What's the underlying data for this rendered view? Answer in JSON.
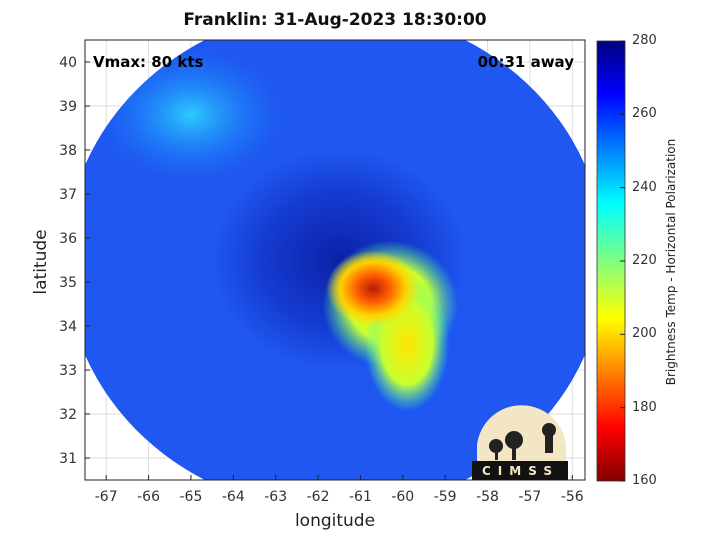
{
  "title": "Franklin: 31-Aug-2023 18:30:00",
  "annotations": {
    "vmax": "Vmax: 80 kts",
    "away": "00:31 away"
  },
  "logo_text": "CIMSS",
  "colorbar": {
    "label": "Brightness Temp - Horizontal Polarization",
    "min": 160,
    "max": 280,
    "ticks": [
      160,
      180,
      200,
      220,
      240,
      260,
      280
    ],
    "colormap": "jet"
  },
  "chart_data": {
    "type": "heatmap",
    "title": "Franklin: 31-Aug-2023 18:30:00",
    "xlabel": "longitude",
    "ylabel": "latitude",
    "xlim": [
      -67.5,
      -55.7
    ],
    "ylim": [
      30.5,
      40.5
    ],
    "xticks": [
      -67,
      -66,
      -65,
      -64,
      -63,
      -62,
      -61,
      -60,
      -59,
      -58,
      -57,
      -56
    ],
    "yticks": [
      31,
      32,
      33,
      34,
      35,
      36,
      37,
      38,
      39,
      40
    ],
    "grid": true,
    "swath": {
      "center": [
        -61.6,
        35.5
      ],
      "radius_deg": 5.4
    },
    "background_tb": 258,
    "features": [
      {
        "name": "eye-core",
        "lon": -60.7,
        "lat": 34.85,
        "tb": 185
      },
      {
        "name": "inner-band",
        "lon": -60.3,
        "lat": 34.5,
        "tb": 212
      },
      {
        "name": "south-band",
        "lon": -59.9,
        "lat": 33.6,
        "tb": 210
      },
      {
        "name": "cold-ring",
        "lon": -61.5,
        "lat": 35.5,
        "tb": 268
      },
      {
        "name": "northwest-clear",
        "lon": -65.0,
        "lat": 38.8,
        "tb": 238
      }
    ]
  }
}
